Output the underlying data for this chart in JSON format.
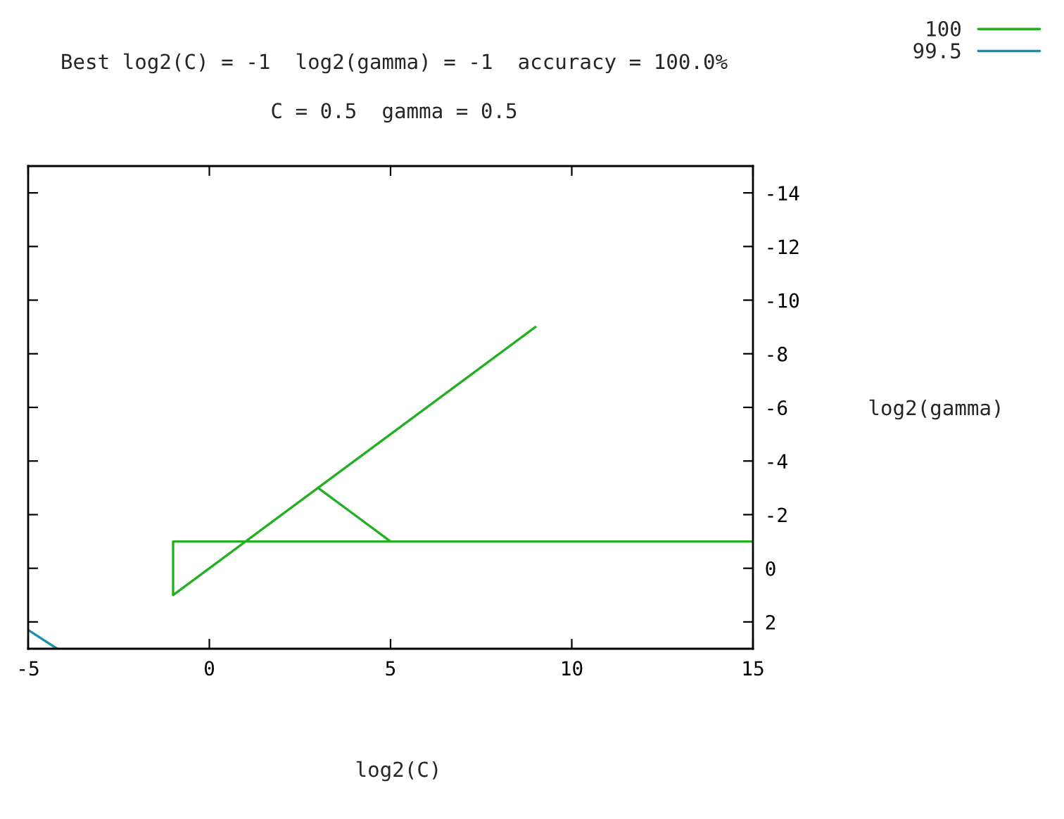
{
  "chart_data": {
    "type": "line",
    "title": "Best log2(C) = -1  log2(gamma) = -1  accuracy = 100.0%",
    "subtitle": "C = 0.5  gamma = 0.5",
    "xlabel": "log2(C)",
    "ylabel": "log2(gamma)",
    "series": [
      {
        "name": "100",
        "color": "#22b022",
        "x": [
          15,
          -1,
          -1,
          9,
          null,
          3,
          5
        ],
        "values": [
          -1,
          -1,
          1,
          -9,
          null,
          -3,
          -1
        ]
      },
      {
        "name": "99.5",
        "color": "#1a8fb0",
        "x": [
          -5,
          -4.2
        ],
        "values": [
          2.3,
          3
        ]
      }
    ],
    "xlim": [
      -5,
      15
    ],
    "xticks": [
      -5,
      0,
      5,
      10,
      15
    ],
    "ylim": [
      3,
      -15
    ],
    "yticks": [
      -14,
      -12,
      -10,
      -8,
      -6,
      -4,
      -2,
      0,
      2
    ],
    "grid": false,
    "legend": "top right",
    "marker": "none",
    "line_style": "solid"
  }
}
